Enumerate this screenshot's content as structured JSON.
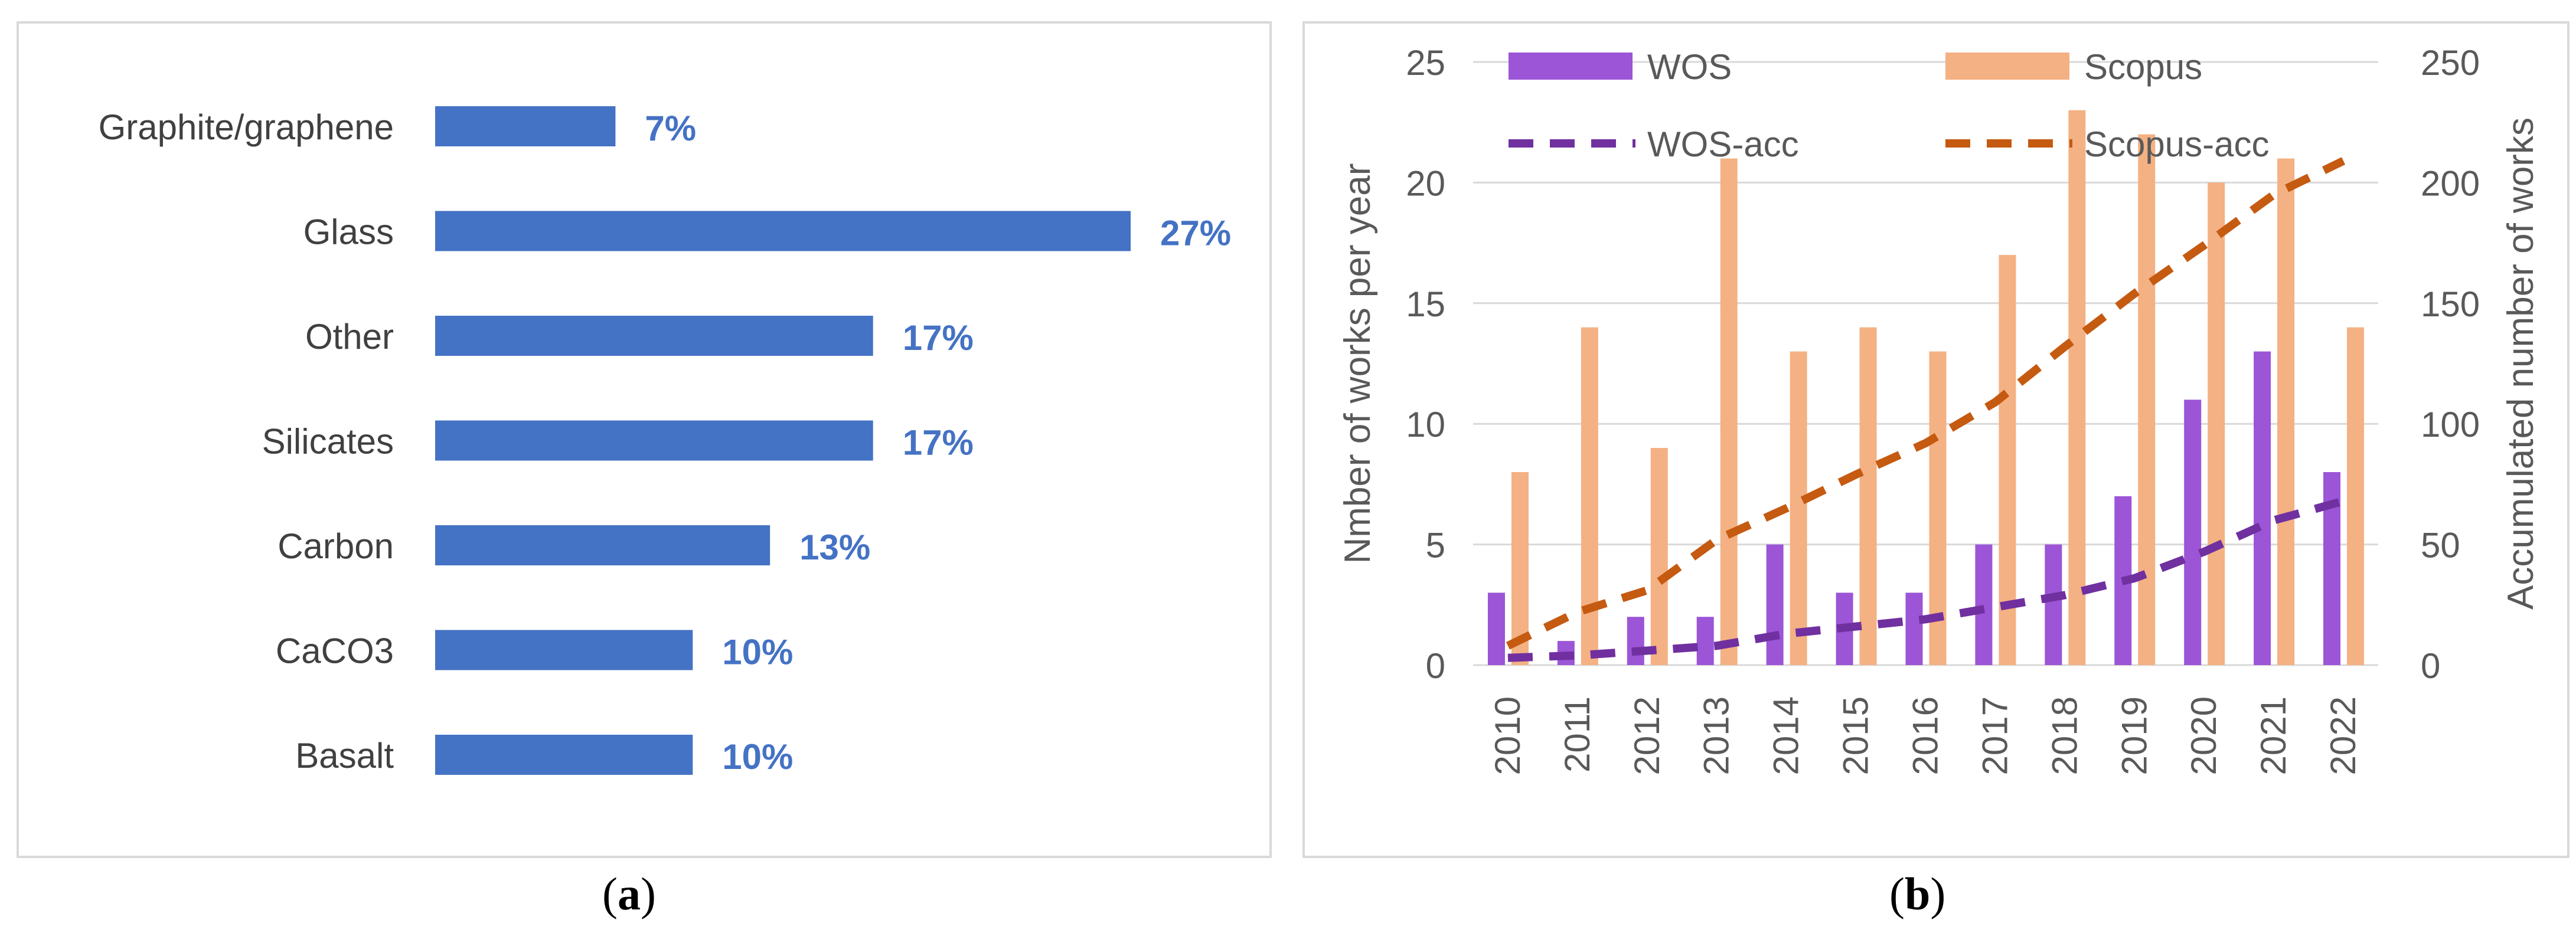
{
  "chart_data": [
    {
      "type": "bar",
      "orientation": "horizontal",
      "panel_label": "a",
      "categories": [
        "Graphite/graphene",
        "Glass",
        "Other",
        "Silicates",
        "Carbon",
        "CaCO3",
        "Basalt"
      ],
      "values": [
        7,
        27,
        17,
        17,
        13,
        10,
        10
      ],
      "data_labels": [
        "7%",
        "27%",
        "17%",
        "17%",
        "13%",
        "10%",
        "10%"
      ],
      "bar_color": "#4472c4",
      "label_color": "#4472c4",
      "xlim": [
        0,
        27
      ]
    },
    {
      "type": "bar",
      "panel_label": "b",
      "categories": [
        "2010",
        "2011",
        "2012",
        "2013",
        "2014",
        "2015",
        "2016",
        "2017",
        "2018",
        "2019",
        "2020",
        "2021",
        "2022"
      ],
      "ylabel": "Nmber of works per year",
      "y2label": "Accumulated number of works",
      "ylim": [
        0,
        25
      ],
      "y2lim": [
        0,
        250
      ],
      "yticks": [
        "0",
        "5",
        "10",
        "15",
        "20",
        "25"
      ],
      "y2ticks": [
        "0",
        "50",
        "100",
        "150",
        "200",
        "250"
      ],
      "grid": "horizontal",
      "legend_position": "top",
      "series": [
        {
          "name": "WOS",
          "kind": "bar",
          "axis": "left",
          "color": "#9b55d6",
          "values": [
            3,
            1,
            2,
            2,
            5,
            3,
            3,
            5,
            5,
            7,
            11,
            13,
            8
          ]
        },
        {
          "name": "Scopus",
          "kind": "bar",
          "axis": "left",
          "color": "#f4b183",
          "values": [
            8,
            14,
            9,
            21,
            13,
            14,
            13,
            17,
            23,
            22,
            20,
            21,
            14
          ]
        },
        {
          "name": "WOS-acc",
          "kind": "line",
          "style": "dashed",
          "axis": "right",
          "color": "#7030a0",
          "values": [
            3,
            4,
            6,
            8,
            13,
            16,
            19,
            24,
            29,
            36,
            47,
            60,
            68
          ]
        },
        {
          "name": "Scopus-acc",
          "kind": "line",
          "style": "dashed",
          "axis": "right",
          "color": "#c55a11",
          "values": [
            8,
            22,
            31,
            52,
            65,
            79,
            92,
            109,
            132,
            154,
            174,
            195,
            209
          ]
        }
      ]
    }
  ],
  "captions": {
    "a": "a",
    "b": "b"
  }
}
